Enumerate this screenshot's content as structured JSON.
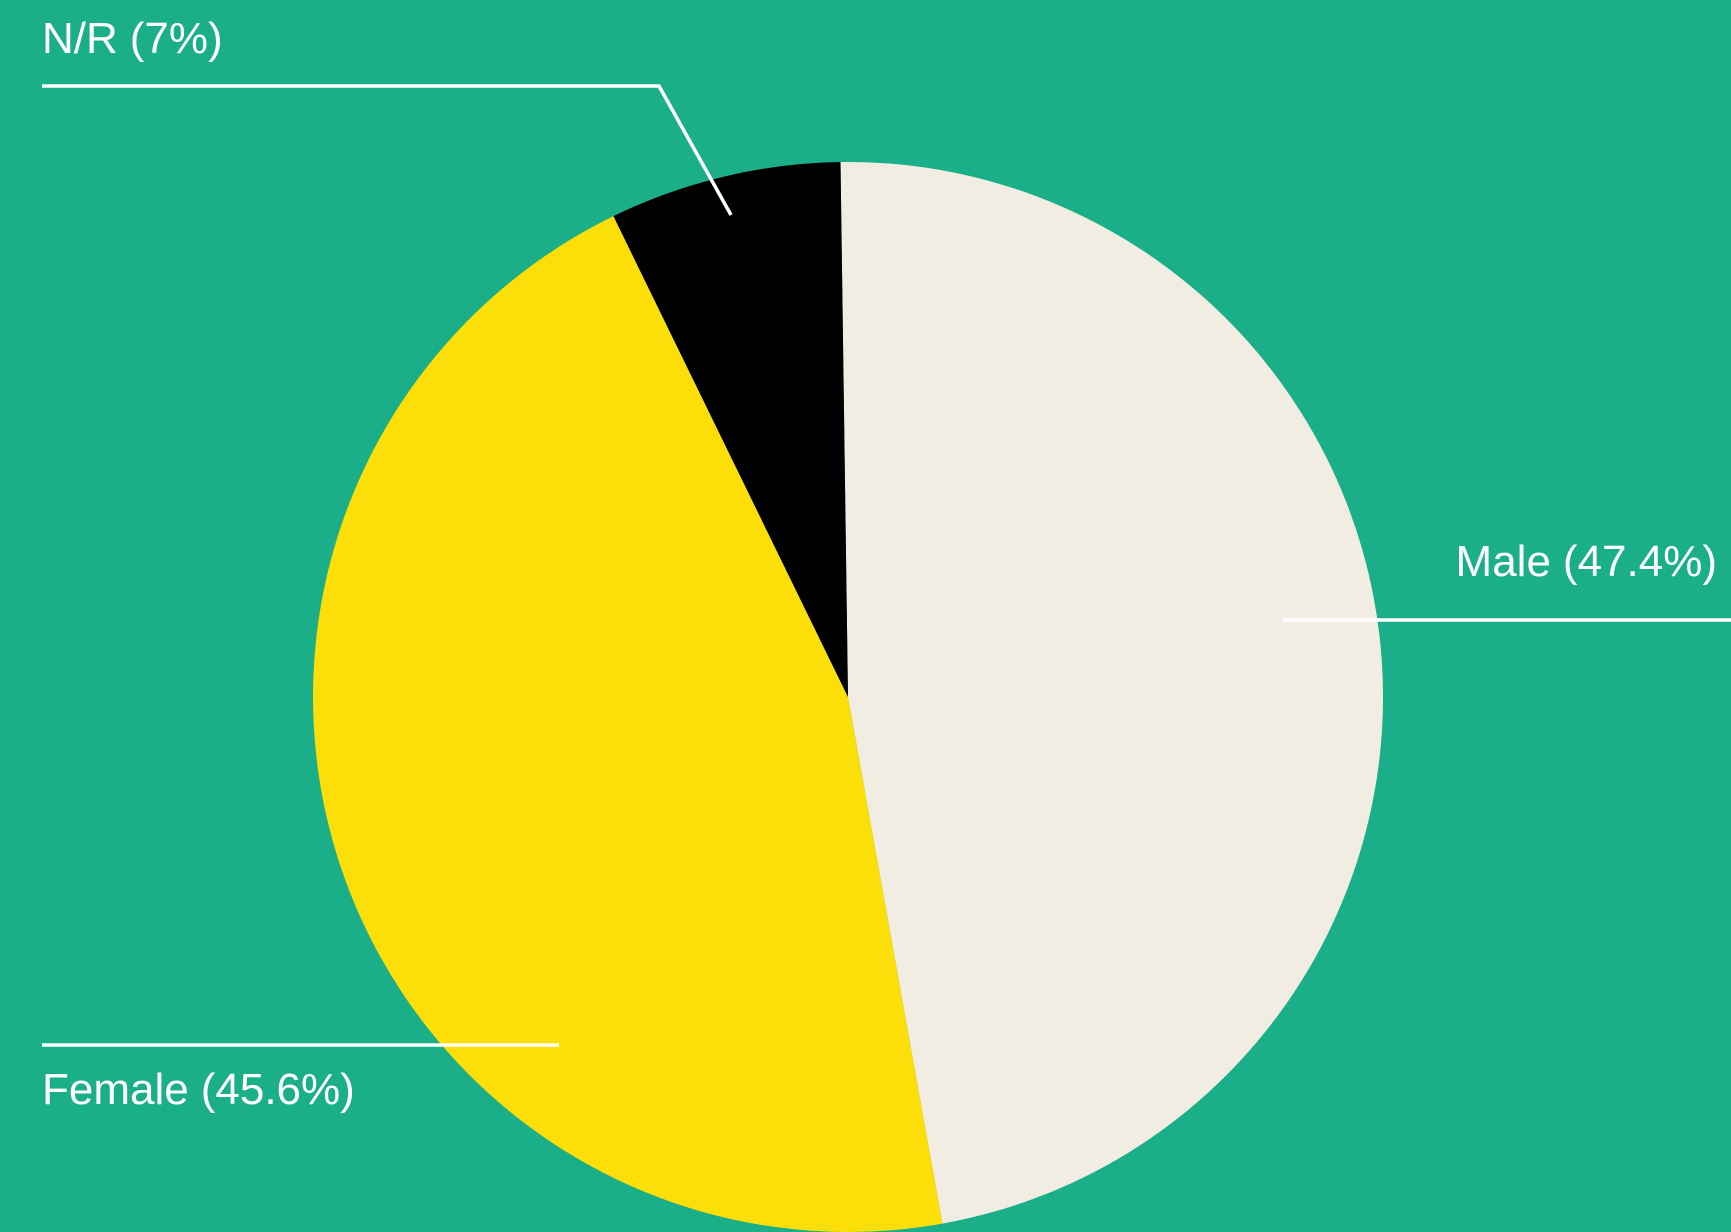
{
  "chart_data": {
    "type": "pie",
    "categories": [
      "Male",
      "Female",
      "N/R"
    ],
    "values": [
      47.4,
      45.6,
      7
    ],
    "value_labels": [
      "(47.4%)",
      "(45.6%)",
      "(7%)"
    ],
    "colors": [
      "#f1ede2",
      "#fcdf08",
      "#000000"
    ],
    "background": "#1baf89"
  }
}
